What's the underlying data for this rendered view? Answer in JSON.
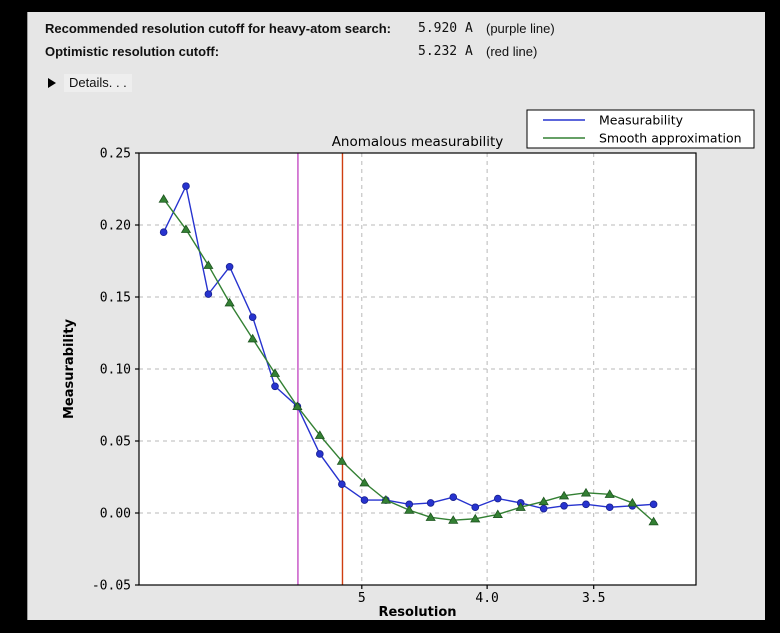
{
  "colors": {
    "page_bg": "#000000",
    "panel_bg": "#e6e6e6",
    "plot_bg": "#ffffff",
    "axis": "#000000",
    "grid": "#b9b9b9",
    "blue_series": "#2733cf",
    "blue_marker_edge": "#17208f",
    "green_series": "#338033",
    "green_marker_edge": "#1e5520",
    "purple_line": "#c44ec4",
    "red_line": "#cf3e10"
  },
  "header": {
    "rows": [
      {
        "label": "Recommended resolution cutoff for heavy-atom search:",
        "value": "5.920 A",
        "note": "(purple line)"
      },
      {
        "label": "Optimistic resolution cutoff:",
        "value": "5.232 A",
        "note": "(red line)"
      }
    ],
    "details_label": "Details. . ."
  },
  "chart_data": {
    "type": "line",
    "title": "Anomalous measurability",
    "xlabel": "Resolution",
    "ylabel": "Measurability",
    "x_axis_note": "x position linear in 1/d^2, d = resolution in Angstrom, high resolution to the right",
    "xlim_inv_d2": [
      0.0,
      0.1
    ],
    "ylim": [
      -0.05,
      0.25
    ],
    "grid": true,
    "xticks": [
      {
        "label": "5",
        "d": 5.0
      },
      {
        "label": "4.0",
        "d": 4.0
      },
      {
        "label": "3.5",
        "d": 3.5
      }
    ],
    "yticks": [
      {
        "label": "0.25",
        "v": 0.25
      },
      {
        "label": "0.20",
        "v": 0.2
      },
      {
        "label": "0.15",
        "v": 0.15
      },
      {
        "label": "0.10",
        "v": 0.1
      },
      {
        "label": "0.05",
        "v": 0.05
      },
      {
        "label": "0.00",
        "v": 0.0
      },
      {
        "label": "-0.05",
        "v": -0.05
      }
    ],
    "resolution_A": [
      15.03,
      10.89,
      8.96,
      7.84,
      7.0,
      6.4,
      5.93,
      5.55,
      5.24,
      4.97,
      4.75,
      4.54,
      4.37,
      4.21,
      4.07,
      3.94,
      3.82,
      3.71,
      3.62,
      3.53,
      3.44,
      3.36,
      3.29
    ],
    "series": [
      {
        "name": "Measurability",
        "marker": "circle",
        "values": [
          0.195,
          0.227,
          0.152,
          0.171,
          0.136,
          0.088,
          0.074,
          0.041,
          0.02,
          0.009,
          0.009,
          0.006,
          0.007,
          0.011,
          0.004,
          0.01,
          0.007,
          0.003,
          0.005,
          0.006,
          0.004,
          0.005,
          0.006
        ]
      },
      {
        "name": "Smooth approximation",
        "marker": "triangle",
        "values": [
          0.218,
          0.197,
          0.172,
          0.146,
          0.121,
          0.097,
          0.074,
          0.054,
          0.036,
          0.021,
          0.009,
          0.002,
          -0.003,
          -0.005,
          -0.004,
          -0.001,
          0.004,
          0.008,
          0.012,
          0.014,
          0.013,
          0.007,
          -0.006
        ]
      }
    ],
    "vlines": [
      {
        "name": "purple line",
        "d": 5.92
      },
      {
        "name": "red line",
        "d": 5.232
      }
    ],
    "legend_position": "top-right"
  }
}
